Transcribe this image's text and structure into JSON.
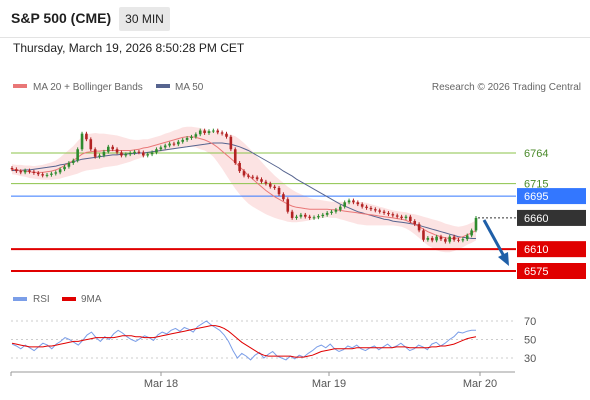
{
  "header": {
    "title": "S&P 500 (CME)",
    "timeframe": "30 MIN",
    "datetime": "Thursday, March 19, 2026 8:50:28 PM CET"
  },
  "legend": {
    "ma20_label": "MA 20 + Bollinger Bands",
    "ma50_label": "MA 50",
    "credit": "Research © 2026 Trading Central",
    "rsi_label": "RSI",
    "rsi_ma_label": "9MA"
  },
  "colors": {
    "ma20": "#e97777",
    "bollinger_fill": "#fbdada",
    "ma50": "#56648f",
    "support": "#e00000",
    "pivot": "#3377ff",
    "resistance": "#8bc34a",
    "current": "#333333",
    "up_candle": "#2e8b2e",
    "down_candle": "#b22222",
    "rsi": "#7b9ee8",
    "rsi_ma": "#e00000",
    "arrow": "#1f5fa8"
  },
  "chart_data": [
    {
      "type": "candlestick",
      "title": "S&P 500 (CME)",
      "timeframe": "30 MIN",
      "x_ticks": [
        "Mar 18",
        "Mar 19",
        "Mar 20"
      ],
      "ylim": [
        6555,
        6800
      ],
      "levels": [
        {
          "value": 6764,
          "role": "resistance",
          "label": "6764"
        },
        {
          "value": 6715,
          "role": "resistance",
          "label": "6715"
        },
        {
          "value": 6695,
          "role": "pivot",
          "label": "6695"
        },
        {
          "value": 6660,
          "role": "current",
          "label": "6660"
        },
        {
          "value": 6610,
          "role": "support",
          "label": "6610"
        },
        {
          "value": 6575,
          "role": "support",
          "label": "6575"
        }
      ],
      "candles_close": [
        6738,
        6735,
        6733,
        6736,
        6734,
        6732,
        6730,
        6728,
        6729,
        6731,
        6733,
        6738,
        6742,
        6748,
        6752,
        6770,
        6795,
        6786,
        6770,
        6758,
        6760,
        6766,
        6774,
        6770,
        6765,
        6760,
        6762,
        6764,
        6766,
        6765,
        6760,
        6762,
        6765,
        6770,
        6773,
        6776,
        6779,
        6778,
        6782,
        6785,
        6788,
        6790,
        6794,
        6800,
        6796,
        6799,
        6800,
        6797,
        6795,
        6790,
        6770,
        6748,
        6735,
        6728,
        6726,
        6725,
        6722,
        6718,
        6715,
        6710,
        6708,
        6698,
        6690,
        6670,
        6660,
        6662,
        6665,
        6662,
        6660,
        6661,
        6663,
        6665,
        6668,
        6670,
        6673,
        6678,
        6685,
        6688,
        6685,
        6682,
        6678,
        6676,
        6674,
        6672,
        6670,
        6668,
        6666,
        6664,
        6662,
        6660,
        6662,
        6655,
        6650,
        6640,
        6625,
        6628,
        6624,
        6630,
        6626,
        6622,
        6630,
        6625,
        6624,
        6626,
        6632,
        6640,
        6660
      ],
      "ma20": [
        6738,
        6737,
        6736,
        6735,
        6734,
        6733,
        6733,
        6733,
        6734,
        6735,
        6737,
        6740,
        6744,
        6748,
        6752,
        6757,
        6762,
        6765,
        6766,
        6767,
        6767,
        6768,
        6768,
        6768,
        6768,
        6768,
        6768,
        6768,
        6769,
        6770,
        6772,
        6773,
        6775,
        6777,
        6779,
        6781,
        6783,
        6785,
        6787,
        6789,
        6790,
        6790,
        6789,
        6787,
        6785,
        6782,
        6778,
        6773,
        6767,
        6761,
        6755,
        6749,
        6742,
        6735,
        6728,
        6722,
        6716,
        6710,
        6704,
        6699,
        6694,
        6690,
        6686,
        6682,
        6679,
        6677,
        6676,
        6675,
        6674,
        6674,
        6674,
        6674,
        6674,
        6673,
        6673,
        6672,
        6671,
        6670,
        6669,
        6668,
        6667,
        6666,
        6665,
        6664,
        6663,
        6662,
        6661,
        6660,
        6659,
        6658,
        6656,
        6653,
        6650,
        6646,
        6642,
        6638,
        6635,
        6632,
        6630,
        6628,
        6627,
        6627,
        6628,
        6630,
        6633,
        6636,
        6640
      ],
      "ma50": [
        6736,
        6736,
        6736,
        6737,
        6737,
        6738,
        6739,
        6740,
        6741,
        6742,
        6743,
        6745,
        6746,
        6748,
        6750,
        6752,
        6754,
        6755,
        6756,
        6757,
        6758,
        6759,
        6760,
        6761,
        6761,
        6762,
        6762,
        6763,
        6763,
        6764,
        6764,
        6765,
        6766,
        6767,
        6768,
        6769,
        6770,
        6771,
        6772,
        6773,
        6774,
        6775,
        6776,
        6777,
        6778,
        6779,
        6780,
        6780,
        6780,
        6779,
        6778,
        6776,
        6774,
        6771,
        6768,
        6764,
        6760,
        6756,
        6752,
        6748,
        6744,
        6740,
        6735,
        6731,
        6727,
        6722,
        6718,
        6714,
        6710,
        6706,
        6702,
        6698,
        6694,
        6690,
        6686,
        6682,
        6679,
        6676,
        6673,
        6670,
        6668,
        6666,
        6664,
        6662,
        6660,
        6658,
        6657,
        6655,
        6654,
        6653,
        6652,
        6651,
        6650,
        6648,
        6646,
        6644,
        6642,
        6640,
        6638,
        6636,
        6634,
        6632,
        6630,
        6629,
        6628,
        6627,
        6627
      ],
      "bollinger_width": [
        8,
        8,
        9,
        9,
        10,
        10,
        11,
        12,
        13,
        14,
        15,
        17,
        19,
        21,
        23,
        26,
        28,
        29,
        29,
        29,
        28,
        27,
        26,
        25,
        24,
        22,
        20,
        18,
        16,
        15,
        14,
        13,
        13,
        13,
        13,
        14,
        14,
        15,
        15,
        16,
        16,
        16,
        16,
        17,
        17,
        18,
        20,
        24,
        28,
        33,
        38,
        42,
        44,
        45,
        45,
        44,
        42,
        40,
        38,
        36,
        34,
        32,
        30,
        28,
        26,
        24,
        22,
        20,
        18,
        16,
        15,
        14,
        13,
        13,
        13,
        14,
        15,
        16,
        17,
        18,
        18,
        18,
        17,
        16,
        15,
        14,
        13,
        12,
        12,
        12,
        13,
        14,
        16,
        18,
        20,
        22,
        23,
        24,
        24,
        23,
        22,
        20,
        18,
        17,
        16,
        16,
        16
      ]
    },
    {
      "type": "line",
      "title": "RSI",
      "ylim": [
        20,
        80
      ],
      "y_ticks": [
        70,
        50,
        30
      ],
      "series": [
        {
          "name": "RSI",
          "values": [
            45,
            43,
            40,
            44,
            41,
            38,
            42,
            46,
            44,
            40,
            45,
            48,
            52,
            50,
            47,
            44,
            49,
            55,
            58,
            52,
            48,
            53,
            50,
            56,
            60,
            57,
            53,
            50,
            48,
            51,
            54,
            52,
            49,
            55,
            58,
            56,
            60,
            62,
            59,
            63,
            61,
            58,
            64,
            67,
            70,
            66,
            63,
            60,
            55,
            48,
            38,
            30,
            35,
            32,
            28,
            33,
            36,
            30,
            34,
            37,
            32,
            30,
            28,
            32,
            29,
            33,
            31,
            35,
            38,
            42,
            44,
            41,
            45,
            40,
            37,
            39,
            43,
            41,
            44,
            40,
            38,
            41,
            43,
            39,
            42,
            45,
            41,
            43,
            46,
            42,
            38,
            40,
            44,
            42,
            39,
            45,
            47,
            43,
            46,
            50,
            53,
            58,
            57,
            59,
            60,
            60
          ]
        },
        {
          "name": "9MA",
          "values": [
            46,
            45,
            44,
            43,
            42,
            42,
            42,
            42,
            43,
            43,
            44,
            45,
            46,
            47,
            48,
            48,
            49,
            50,
            51,
            52,
            52,
            52,
            52,
            52,
            53,
            54,
            54,
            54,
            53,
            53,
            52,
            52,
            52,
            53,
            54,
            55,
            56,
            57,
            58,
            59,
            60,
            61,
            62,
            63,
            64,
            65,
            65,
            64,
            62,
            59,
            55,
            51,
            47,
            44,
            41,
            38,
            35,
            33,
            32,
            32,
            32,
            32,
            32,
            32,
            31,
            31,
            31,
            32,
            33,
            35,
            37,
            38,
            39,
            40,
            40,
            40,
            40,
            40,
            41,
            41,
            41,
            41,
            41,
            41,
            41,
            41,
            41,
            42,
            42,
            42,
            41,
            41,
            41,
            41,
            41,
            42,
            42,
            43,
            43,
            44,
            45,
            47,
            49,
            51,
            52,
            53
          ]
        }
      ]
    }
  ]
}
